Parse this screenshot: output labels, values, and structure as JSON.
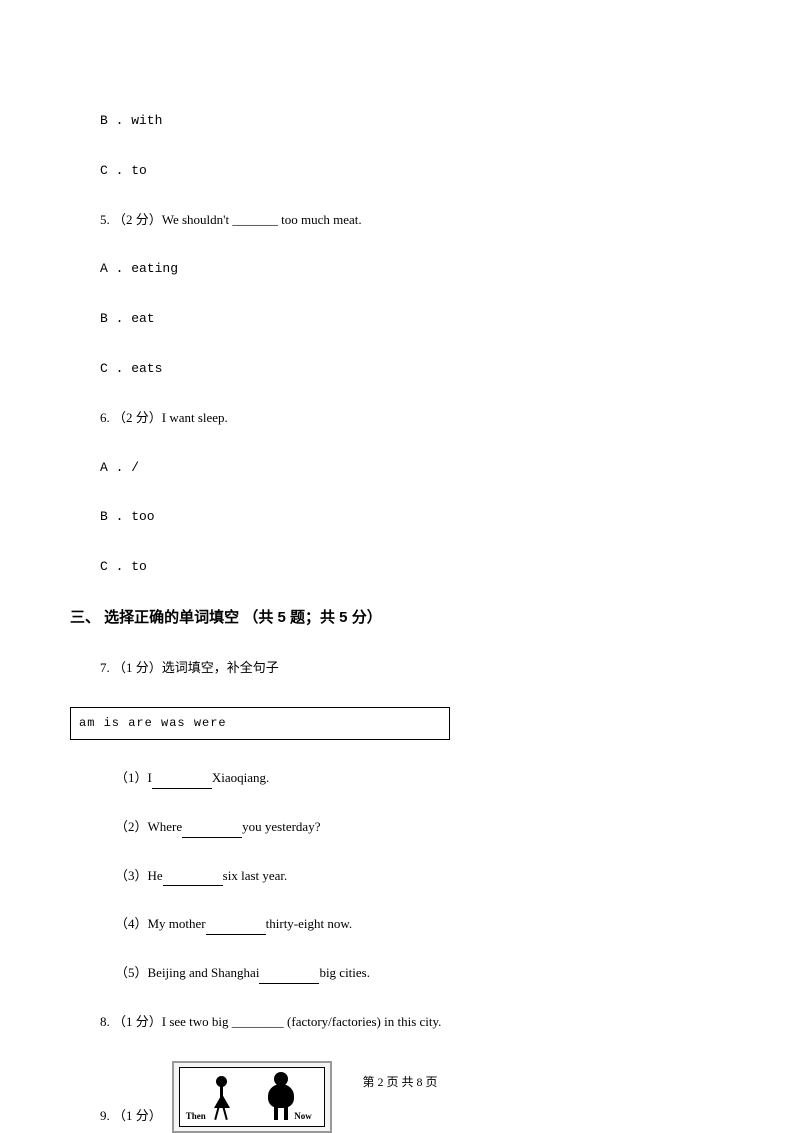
{
  "q4": {
    "optionB": "B . with",
    "optionC": "C . to"
  },
  "q5": {
    "prompt": "5. （2 分）We shouldn't _______ too much meat.",
    "optionA": "A . eating",
    "optionB": "B . eat",
    "optionC": "C . eats"
  },
  "q6": {
    "prompt": "6. （2 分）I want          sleep.",
    "optionA": "A . /",
    "optionB": "B . too",
    "optionC": "C . to"
  },
  "section3": {
    "header": "三、 选择正确的单词填空 （共 5 题；共 5 分）"
  },
  "q7": {
    "prompt": "7. （1 分）选词填空，补全句子",
    "wordBox": "am    is    are    was    were",
    "sub1_pre": "（1）I",
    "sub1_post": "Xiaoqiang.",
    "sub2_pre": "（2）Where",
    "sub2_post": "you yesterday?",
    "sub3_pre": "（3）He",
    "sub3_post": "six last year.",
    "sub4_pre": "（4）My mother",
    "sub4_post": "thirty-eight now.",
    "sub5_pre": "（5）Beijing and Shanghai",
    "sub5_post": "big cities."
  },
  "q8": {
    "prompt": "8. （1 分）I see two big ________ (factory/factories) in this city."
  },
  "q9": {
    "prompt": "9. （1 分）",
    "imageThen": "Then",
    "imageNow": "Now"
  },
  "footer": "第 2 页 共 8 页"
}
